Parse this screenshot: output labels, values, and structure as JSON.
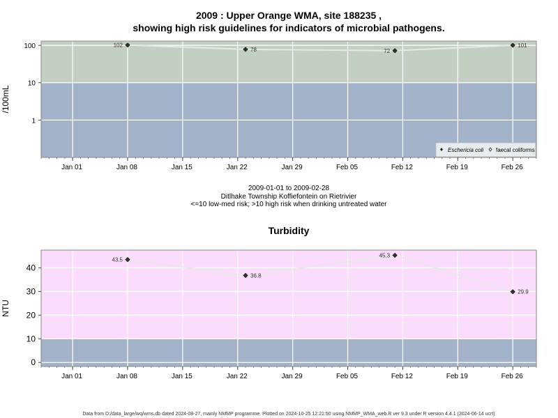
{
  "chart_data": [
    {
      "type": "line",
      "title_line1": "2009 : Upper Orange WMA, site 188235 ,",
      "title_line2": "showing high risk guidelines for indicators of microbial pathogens.",
      "ylabel": "/100mL",
      "y_scale": "log",
      "ylim": [
        0.1,
        130
      ],
      "y_ticks": [
        1,
        10,
        100
      ],
      "y_tick_labels": [
        "1",
        "10",
        "100"
      ],
      "x_range": [
        "2008-12-28",
        "2009-03-01"
      ],
      "x_ticks": [
        "Jan 01",
        "Jan 08",
        "Jan 15",
        "Jan 22",
        "Jan 29",
        "Feb 05",
        "Feb 12",
        "Feb 19",
        "Feb 26"
      ],
      "x_tick_dates": [
        "2009-01-01",
        "2009-01-08",
        "2009-01-15",
        "2009-01-22",
        "2009-01-29",
        "2009-02-05",
        "2009-02-12",
        "2009-02-19",
        "2009-02-26"
      ],
      "threshold": 10,
      "colors": {
        "high_risk": "#c4cfc3",
        "low_risk": "#a1b2c9",
        "series": "#e8e8e8"
      },
      "series": [
        {
          "name": "Eschericia coli",
          "x": [
            "2009-01-08",
            "2009-01-23",
            "2009-02-11",
            "2009-02-26"
          ],
          "values": [
            102,
            78,
            72,
            101
          ],
          "labels": [
            "102",
            "78",
            "72",
            "101"
          ]
        }
      ],
      "legend": {
        "position": "bottom-right",
        "items": [
          "Eschericia coli",
          "faecal coliforms"
        ]
      },
      "caption": [
        "2009-01-01 to 2009-02-28",
        "Ditlhake Township Koffiefontein on Rietrivier",
        "<=10 low-med risk; >10 high risk when drinking untreated water"
      ]
    },
    {
      "type": "line",
      "title": "Turbidity",
      "ylabel": "NTU",
      "y_scale": "linear",
      "ylim": [
        -1.7,
        47.5
      ],
      "y_ticks": [
        0,
        10,
        20,
        30,
        40
      ],
      "y_tick_labels": [
        "0",
        "10",
        "20",
        "30",
        "40"
      ],
      "x_range": [
        "2008-12-28",
        "2009-03-01"
      ],
      "x_ticks": [
        "Jan 01",
        "Jan 08",
        "Jan 15",
        "Jan 22",
        "Jan 29",
        "Feb 05",
        "Feb 12",
        "Feb 19",
        "Feb 26"
      ],
      "x_tick_dates": [
        "2009-01-01",
        "2009-01-08",
        "2009-01-15",
        "2009-01-22",
        "2009-01-29",
        "2009-02-05",
        "2009-02-12",
        "2009-02-19",
        "2009-02-26"
      ],
      "threshold": 10,
      "colors": {
        "high_risk": "#fcdcfc",
        "low_risk": "#a1b2c9",
        "series": "#e8e8e8"
      },
      "series": [
        {
          "x": [
            "2009-01-08",
            "2009-01-23",
            "2009-02-11",
            "2009-02-26"
          ],
          "values": [
            43.5,
            36.8,
            45.3,
            29.9
          ],
          "labels": [
            "43.5",
            "36.8",
            "45.3",
            "29.9"
          ]
        }
      ]
    }
  ],
  "footer": "Data from D:/data_large/wq/wms.db dated 2024-08-27, mainly NMMP programme. Plotted on 2024-10-25 12:21:50 using NMMP_WMA_web.R ver 9.3 under R version 4.4.1 (2024-06-14 ucrt)"
}
